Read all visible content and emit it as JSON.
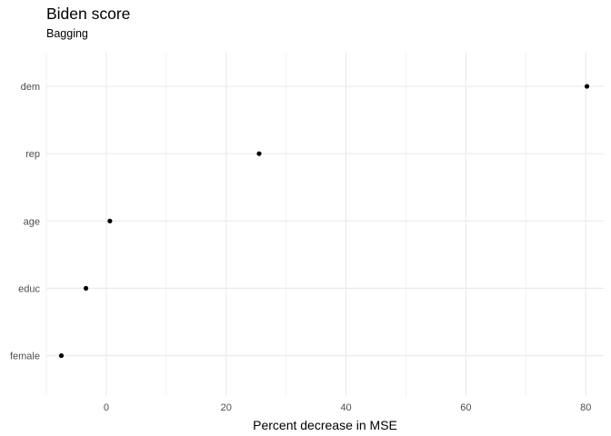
{
  "chart_data": {
    "type": "scatter",
    "title": "Biden score",
    "subtitle": "Bagging",
    "xlabel": "Percent decrease in MSE",
    "ylabel": "",
    "xlim": [
      -10,
      83
    ],
    "x_ticks": [
      0,
      20,
      40,
      60,
      80
    ],
    "categories": [
      "dem",
      "rep",
      "age",
      "educ",
      "female"
    ],
    "values": [
      80.2,
      25.5,
      0.6,
      -3.4,
      -7.5
    ],
    "grid": true,
    "legend": "none",
    "point_color": "#000000"
  }
}
